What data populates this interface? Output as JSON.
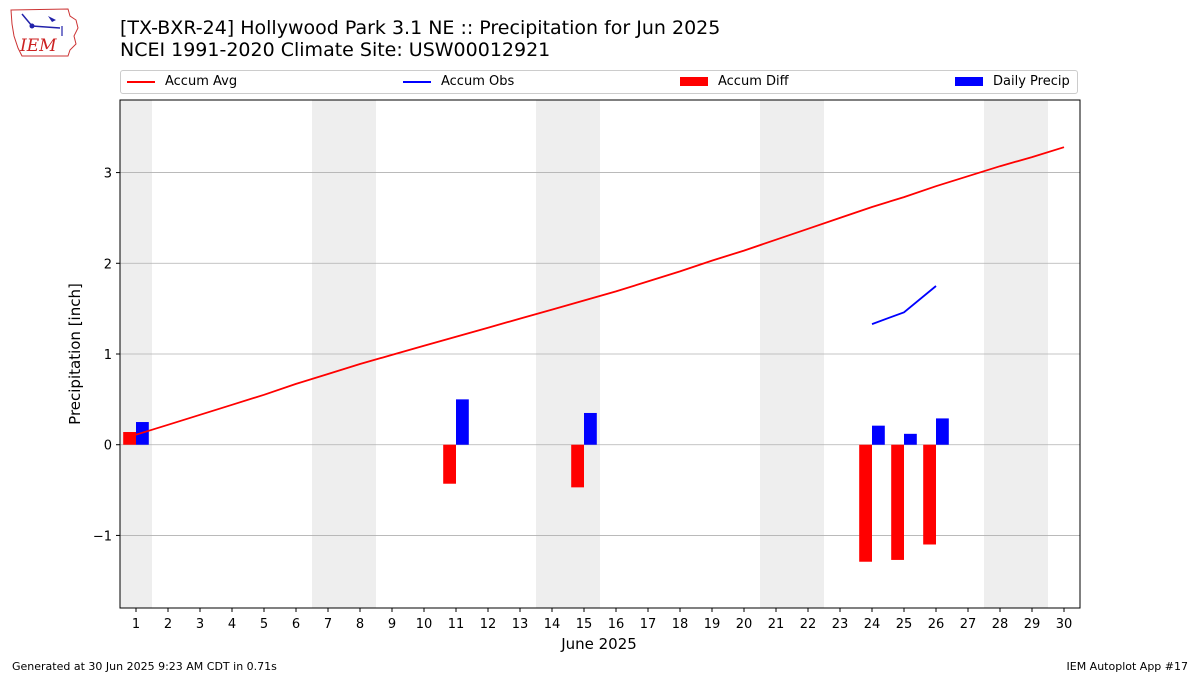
{
  "header": {
    "title_line1": "[TX-BXR-24] Hollywood Park 3.1 NE :: Precipitation for Jun 2025",
    "title_line2": "NCEI 1991-2020 Climate Site: USW00012921",
    "logo_text": "IEM",
    "logo_icon": "iowa-state-outline-weather-icon"
  },
  "legend": {
    "placement": "top, above plot",
    "items": [
      {
        "label": "Accum Avg",
        "kind": "line",
        "color": "#ff0000"
      },
      {
        "label": "Accum Obs",
        "kind": "line",
        "color": "#0000ff"
      },
      {
        "label": "Accum Diff",
        "kind": "bar",
        "color": "#ff0000"
      },
      {
        "label": "Daily Precip",
        "kind": "bar",
        "color": "#0000ff"
      }
    ]
  },
  "footer": {
    "generated": "Generated at 30 Jun 2025 9:23 AM CDT in 0.71s",
    "app": "IEM Autoplot App #17"
  },
  "colors": {
    "avg_line": "#ff0000",
    "obs_line": "#0000ff",
    "diff_bar": "#ff0000",
    "precip_bar": "#0000ff",
    "weekend_shade": "#eeeeee",
    "grid": "#b0b0b0"
  },
  "chart_data": {
    "type": "bar",
    "xlabel": "June 2025",
    "ylabel": "Precipitation [inch]",
    "xlim": [
      0.5,
      30.5
    ],
    "ylim": [
      -1.8,
      3.8
    ],
    "yticks": [
      -1,
      0,
      1,
      2,
      3
    ],
    "ytick_labels": [
      "−1",
      "0",
      "1",
      "2",
      "3"
    ],
    "grid": "horizontal",
    "weekend_spans": [
      [
        0.5,
        1.5
      ],
      [
        6.5,
        8.5
      ],
      [
        13.5,
        15.5
      ],
      [
        20.5,
        22.5
      ],
      [
        27.5,
        29.5
      ]
    ],
    "x": [
      1,
      2,
      3,
      4,
      5,
      6,
      7,
      8,
      9,
      10,
      11,
      12,
      13,
      14,
      15,
      16,
      17,
      18,
      19,
      20,
      21,
      22,
      23,
      24,
      25,
      26,
      27,
      28,
      29,
      30
    ],
    "series": [
      {
        "name": "Accum Avg",
        "type": "line",
        "values": [
          0.11,
          0.22,
          0.33,
          0.44,
          0.55,
          0.67,
          0.78,
          0.89,
          0.99,
          1.09,
          1.19,
          1.29,
          1.39,
          1.49,
          1.59,
          1.69,
          1.8,
          1.91,
          2.03,
          2.14,
          2.26,
          2.38,
          2.5,
          2.62,
          2.73,
          2.85,
          2.96,
          3.07,
          3.17,
          3.28
        ]
      },
      {
        "name": "Accum Obs",
        "type": "line",
        "values": [
          null,
          null,
          null,
          null,
          null,
          null,
          null,
          null,
          null,
          null,
          null,
          null,
          null,
          null,
          null,
          null,
          null,
          null,
          null,
          null,
          null,
          null,
          null,
          1.33,
          1.46,
          1.75,
          null,
          null,
          null,
          null
        ]
      },
      {
        "name": "Accum Diff",
        "type": "bar",
        "values": [
          0.14,
          null,
          null,
          null,
          null,
          null,
          null,
          null,
          null,
          null,
          -0.43,
          null,
          null,
          null,
          -0.47,
          null,
          null,
          null,
          null,
          null,
          null,
          null,
          null,
          -1.29,
          -1.27,
          -1.1,
          null,
          null,
          null,
          null
        ]
      },
      {
        "name": "Daily Precip",
        "type": "bar",
        "values": [
          0.25,
          null,
          null,
          null,
          null,
          null,
          null,
          null,
          null,
          null,
          0.5,
          null,
          null,
          null,
          0.35,
          null,
          null,
          null,
          null,
          null,
          null,
          null,
          null,
          0.21,
          0.12,
          0.29,
          null,
          null,
          null,
          null
        ]
      }
    ]
  }
}
